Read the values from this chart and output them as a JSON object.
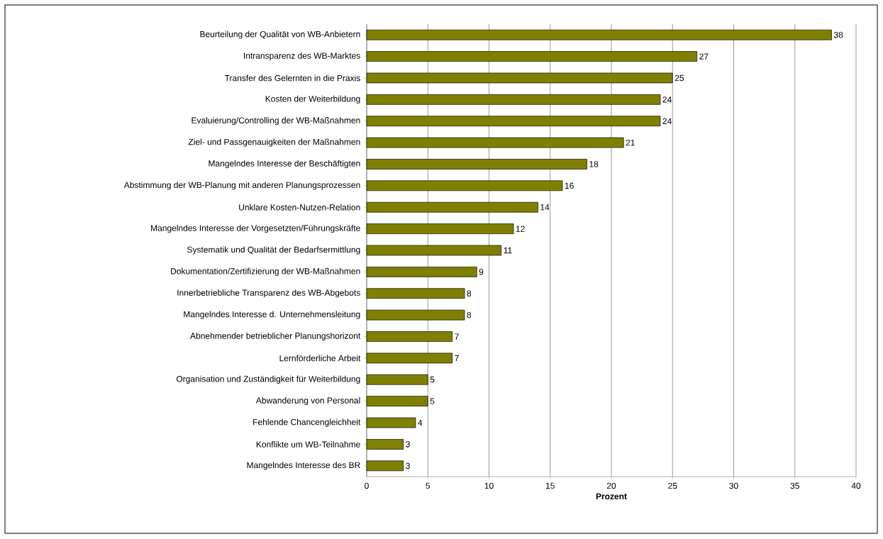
{
  "chart_data": {
    "type": "bar",
    "orientation": "horizontal",
    "xlabel": "Prozent",
    "categories": [
      "Beurteilung der Qualität von WB-Anbietern",
      "Intransparenz des WB-Marktes",
      "Transfer des Gelernten in die Praxis",
      "Kosten der Weiterbildung",
      "Evaluierung/Controlling der WB-Maßnahmen",
      "Ziel- und Passgenauigkeiten der Maßnahmen",
      "Mangelndes Interesse der Beschäftigten",
      "Abstimmung der WB-Planung mit anderen Planungsprozessen",
      "Unklare Kosten-Nutzen-Relation",
      "Mangelndes Interesse der Vorgesetzten/Führungskräfte",
      "Systematik und Qualität der Bedarfsermittlung",
      "Dokumentation/Zertifizierung der WB-Maßnahmen",
      "Innerbetriebliche Transparenz des WB-Abgebots",
      "Mangelndes Interesse d. Unternehmensleitung",
      "Abnehmender betrieblicher Planungshorizont",
      "Lernförderliche Arbeit",
      "Organisation und Zuständigkeit für Weiterbildung",
      "Abwanderung von Personal",
      "Fehlende Chancengleichheit",
      "Konflikte um WB-Teilnahme",
      "Mangelndes Interesse des BR"
    ],
    "values": [
      38,
      27,
      25,
      24,
      24,
      21,
      18,
      16,
      14,
      12,
      11,
      9,
      8,
      8,
      7,
      7,
      5,
      5,
      4,
      3,
      3
    ],
    "color": "#808000",
    "xlim": [
      0,
      40
    ],
    "xticks": [
      0,
      5,
      10,
      15,
      20,
      25,
      30,
      35,
      40
    ],
    "grid": "x",
    "data_labels": true
  }
}
